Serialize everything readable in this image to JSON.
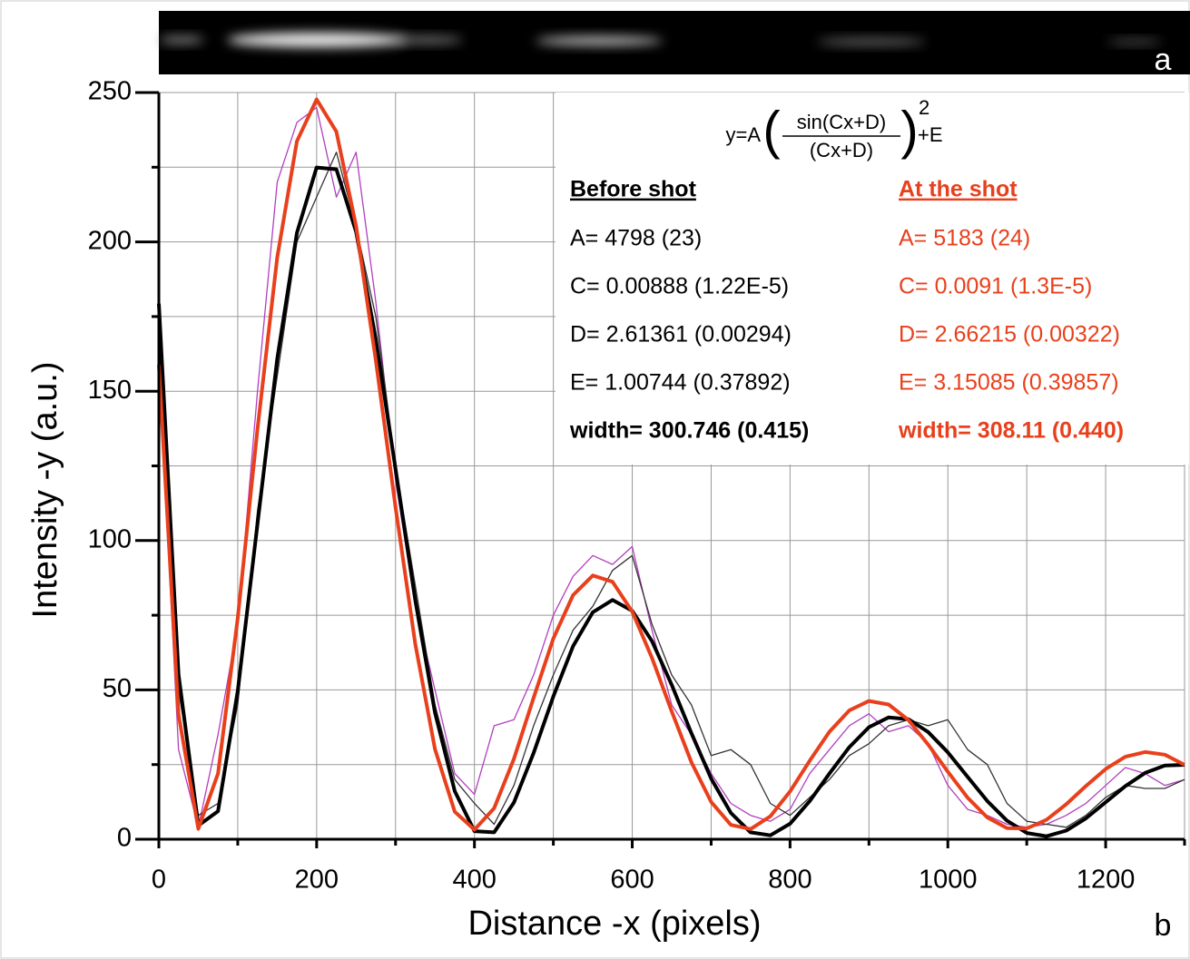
{
  "chart_data": {
    "type": "line",
    "panel_labels": [
      "a",
      "b"
    ],
    "xlabel": "Distance -x (pixels)",
    "ylabel": "Intensity -y (a.u.)",
    "xlim": [
      0,
      1300
    ],
    "ylim": [
      0,
      250
    ],
    "xticks": [
      0,
      200,
      400,
      600,
      800,
      1000,
      1200
    ],
    "x_minor_ticks": [
      100,
      300,
      500,
      700,
      900,
      1100,
      1300
    ],
    "yticks": [
      0,
      50,
      100,
      150,
      200,
      250
    ],
    "y_minor_ticks": [
      25,
      75,
      125,
      175,
      225
    ],
    "grid": true,
    "x": [
      0,
      25,
      50,
      75,
      100,
      125,
      150,
      175,
      200,
      225,
      250,
      275,
      300,
      325,
      350,
      375,
      400,
      425,
      450,
      475,
      500,
      525,
      550,
      575,
      600,
      625,
      650,
      675,
      700,
      725,
      750,
      775,
      800,
      825,
      850,
      875,
      900,
      925,
      950,
      975,
      1000,
      1025,
      1050,
      1075,
      1100,
      1125,
      1150,
      1175,
      1200,
      1225,
      1250,
      1275,
      1300
    ],
    "series": [
      {
        "color": "#b13fbf",
        "width": 1.3,
        "values": [
          160,
          30,
          4,
          35,
          72,
          150,
          220,
          240,
          245,
          215,
          230,
          180,
          120,
          78,
          50,
          22,
          15,
          38,
          40,
          55,
          75,
          88,
          95,
          92,
          98,
          70,
          45,
          35,
          22,
          12,
          8,
          6,
          10,
          22,
          30,
          38,
          42,
          36,
          38,
          32,
          18,
          10,
          8,
          5,
          4,
          5,
          8,
          12,
          18,
          24,
          22,
          18,
          20
        ]
      },
      {
        "color": "#333333",
        "width": 1.3,
        "values": [
          175,
          50,
          8,
          12,
          45,
          110,
          155,
          200,
          215,
          230,
          205,
          175,
          125,
          85,
          45,
          20,
          12,
          5,
          18,
          38,
          55,
          70,
          78,
          90,
          95,
          72,
          55,
          45,
          28,
          30,
          25,
          12,
          8,
          14,
          20,
          28,
          32,
          38,
          40,
          38,
          40,
          30,
          25,
          12,
          6,
          5,
          4,
          8,
          14,
          18,
          17,
          17,
          20
        ]
      },
      {
        "color": "#000000",
        "width": 4,
        "values": [
          179.3,
          55.1,
          4.6,
          9.4,
          49.6,
          105.6,
          160.8,
          203.0,
          224.9,
          224.3,
          203.4,
          167.5,
          123.9,
          80.0,
          42.4,
          16.1,
          2.7,
          2.3,
          12.3,
          28.9,
          47.8,
          64.6,
          76.0,
          80.1,
          76.5,
          66.3,
          51.7,
          35.5,
          20.3,
          8.8,
          2.3,
          1.3,
          5.2,
          12.8,
          22.0,
          30.8,
          37.5,
          40.8,
          40.2,
          35.9,
          29.1,
          20.9,
          12.8,
          6.2,
          2.1,
          1.0,
          2.9,
          7.0,
          12.4,
          17.8,
          22.2,
          24.7,
          24.9
        ]
      },
      {
        "color": "#e8401c",
        "width": 4,
        "values": [
          158.8,
          41.7,
          3.5,
          22.0,
          74.0,
          137.4,
          194.7,
          233.7,
          247.7,
          236.9,
          205.3,
          160.4,
          111.1,
          65.4,
          30.2,
          9.2,
          3.2,
          10.4,
          26.9,
          47.4,
          67.2,
          81.7,
          88.3,
          86.2,
          76.2,
          60.7,
          42.8,
          25.8,
          12.5,
          4.8,
          3.4,
          7.7,
          16.0,
          26.3,
          36.0,
          43.1,
          46.3,
          45.1,
          39.9,
          31.7,
          22.6,
          13.9,
          7.3,
          3.7,
          3.6,
          6.5,
          11.7,
          17.8,
          23.5,
          27.6,
          29.2,
          28.3,
          24.9
        ]
      }
    ],
    "equation": {
      "lhs": "y=A",
      "numerator": "sin(Cx+D)",
      "denominator": "(Cx+D)",
      "power": "2",
      "tail": "+E"
    },
    "fit_tables": [
      {
        "color": "#000000",
        "heading": "Before shot",
        "lines": [
          "A= 4798 (23)",
          "C= 0.00888 (1.22E-5)",
          "D= 2.61361 (0.00294)",
          "E= 1.00744 (0.37892)"
        ],
        "width": "width= 300.746 (0.415)"
      },
      {
        "color": "#e8401c",
        "heading": "At the shot",
        "lines": [
          "A= 5183 (24)",
          "C= 0.0091 (1.3E-5)",
          "D= 2.66215 (0.00322)",
          "E= 3.15085 (0.39857)"
        ],
        "width": "width= 308.11 (0.440)"
      }
    ]
  }
}
